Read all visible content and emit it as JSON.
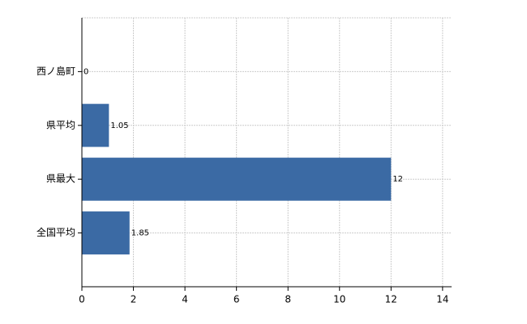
{
  "chart_data": {
    "type": "bar",
    "orientation": "horizontal",
    "categories": [
      "西ノ島町",
      "県平均",
      "県最大",
      "全国平均"
    ],
    "values": [
      0,
      1.05,
      12,
      1.85
    ],
    "color": "#3b6aa4",
    "xlim": [
      0,
      14.35
    ],
    "xticks": [
      0,
      2,
      4,
      6,
      8,
      10,
      12,
      14
    ],
    "grid": true
  }
}
